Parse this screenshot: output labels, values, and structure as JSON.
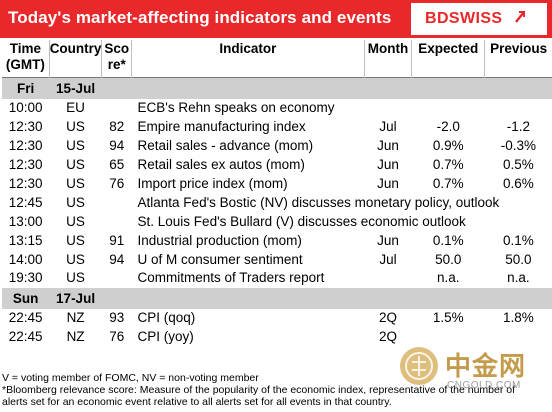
{
  "header": {
    "title": "Today's market-affecting indicators and events",
    "logo": "BDSWISS",
    "colors": {
      "header_bg": "#e8282b",
      "day_row_bg": "#cfcfcf"
    }
  },
  "columns": {
    "time": "Time (GMT)",
    "time_l1": "Time",
    "time_l2": "(GMT)",
    "country": "Country",
    "score_l1": "Sco",
    "score_l2": "re*",
    "indicator": "Indicator",
    "month": "Month",
    "expected": "Expected",
    "previous": "Previous"
  },
  "days": [
    {
      "day": "Fri",
      "date": "15-Jul",
      "events": [
        {
          "time": "10:00",
          "country": "EU",
          "score": "",
          "indicator": "ECB's Rehn speaks on economy",
          "month": "",
          "expected": "",
          "previous": ""
        },
        {
          "time": "12:30",
          "country": "US",
          "score": "82",
          "indicator": "Empire manufacturing index",
          "month": "Jul",
          "expected": "-2.0",
          "previous": "-1.2"
        },
        {
          "time": "12:30",
          "country": "US",
          "score": "94",
          "indicator": "Retail sales - advance (mom)",
          "month": "Jun",
          "expected": "0.9%",
          "previous": "-0.3%"
        },
        {
          "time": "12:30",
          "country": "US",
          "score": "65",
          "indicator": "Retail sales ex autos (mom)",
          "month": "Jun",
          "expected": "0.7%",
          "previous": "0.5%"
        },
        {
          "time": "12:30",
          "country": "US",
          "score": "76",
          "indicator": "Import price index (mom)",
          "month": "Jun",
          "expected": "0.7%",
          "previous": "0.6%"
        },
        {
          "time": "12:45",
          "country": "US",
          "score": "",
          "indicator": "Atlanta Fed's Bostic (NV) discusses monetary policy, outlook",
          "month": "",
          "expected": "",
          "previous": ""
        },
        {
          "time": "13:00",
          "country": "US",
          "score": "",
          "indicator": "St. Louis Fed's Bullard (V) discusses economic outlook",
          "month": "",
          "expected": "",
          "previous": ""
        },
        {
          "time": "13:15",
          "country": "US",
          "score": "91",
          "indicator": "Industrial production (mom)",
          "month": "Jun",
          "expected": "0.1%",
          "previous": "0.1%"
        },
        {
          "time": "14:00",
          "country": "US",
          "score": "94",
          "indicator": "U of M consumer sentiment",
          "month": "Jul",
          "expected": "50.0",
          "previous": "50.0"
        },
        {
          "time": "19:30",
          "country": "US",
          "score": "",
          "indicator": "Commitments of Traders  report",
          "month": "",
          "expected": "n.a.",
          "previous": "n.a."
        }
      ]
    },
    {
      "day": "Sun",
      "date": "17-Jul",
      "events": [
        {
          "time": "22:45",
          "country": "NZ",
          "score": "93",
          "indicator": "CPI (qoq)",
          "month": "2Q",
          "expected": "1.5%",
          "previous": "1.8%"
        },
        {
          "time": "22:45",
          "country": "NZ",
          "score": "76",
          "indicator": "CPI (yoy)",
          "month": "2Q",
          "expected": "",
          "previous": ""
        }
      ]
    }
  ],
  "footnotes": [
    "V = voting member of FOMC, NV = non-voting member",
    "*Bloomberg relevance score:  Measure of the popularity of the economic index, representative of the number of",
    "alerts set for an economic event relative to all alerts set for all events in that country."
  ],
  "watermark": {
    "text": "中金网",
    "sub": "CNGOLD.COM"
  }
}
